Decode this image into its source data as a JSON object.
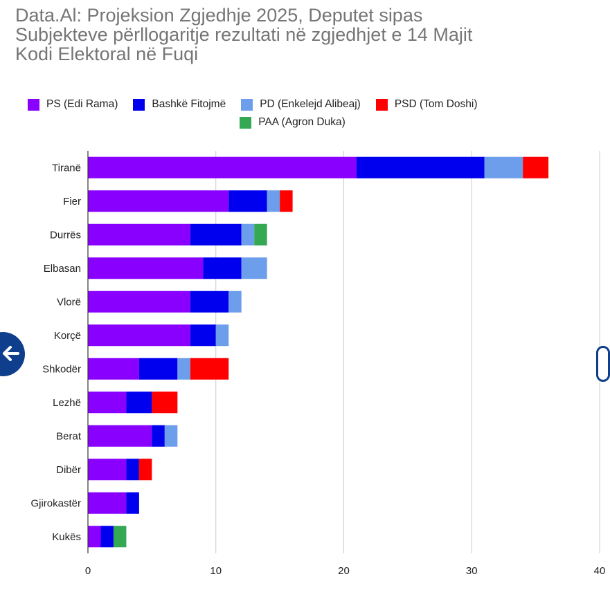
{
  "chart_data": {
    "type": "bar",
    "orientation": "horizontal",
    "stacked": true,
    "title": [
      "Data.Al: Projeksion Zgjedhje 2025, Deputet sipas",
      "Subjekteve përllogaritje rezultati në zgjedhjet e 14 Majit",
      "Kodi Elektoral në Fuqi"
    ],
    "categories": [
      "Tiranë",
      "Fier",
      "Durrës",
      "Elbasan",
      "Vlorë",
      "Korçë",
      "Shkodër",
      "Lezhë",
      "Berat",
      "Dibër",
      "Gjirokastër",
      "Kukës"
    ],
    "series": [
      {
        "name": "PS (Edi Rama)",
        "color": "#8a00ff",
        "values": [
          21,
          11,
          8,
          9,
          8,
          8,
          4,
          3,
          5,
          3,
          3,
          1
        ]
      },
      {
        "name": "Bashkë Fitojmë",
        "color": "#0000ee",
        "values": [
          10,
          3,
          4,
          3,
          3,
          2,
          3,
          2,
          1,
          1,
          1,
          1
        ]
      },
      {
        "name": "PD (Enkelejd Alibeaj)",
        "color": "#6d9eeb",
        "values": [
          3,
          1,
          1,
          2,
          1,
          1,
          1,
          0,
          1,
          0,
          0,
          0
        ]
      },
      {
        "name": "PSD (Tom Doshi)",
        "color": "#ff0000",
        "values": [
          2,
          1,
          0,
          0,
          0,
          0,
          3,
          2,
          0,
          1,
          0,
          0
        ]
      },
      {
        "name": "PAA (Agron Duka)",
        "color": "#34a853",
        "values": [
          0,
          0,
          1,
          0,
          0,
          0,
          0,
          0,
          0,
          0,
          0,
          1
        ]
      }
    ],
    "xlim": [
      0,
      40
    ],
    "x_ticks": [
      "0",
      "10",
      "20",
      "30",
      "40"
    ],
    "grid": true,
    "legend_position": "top"
  }
}
